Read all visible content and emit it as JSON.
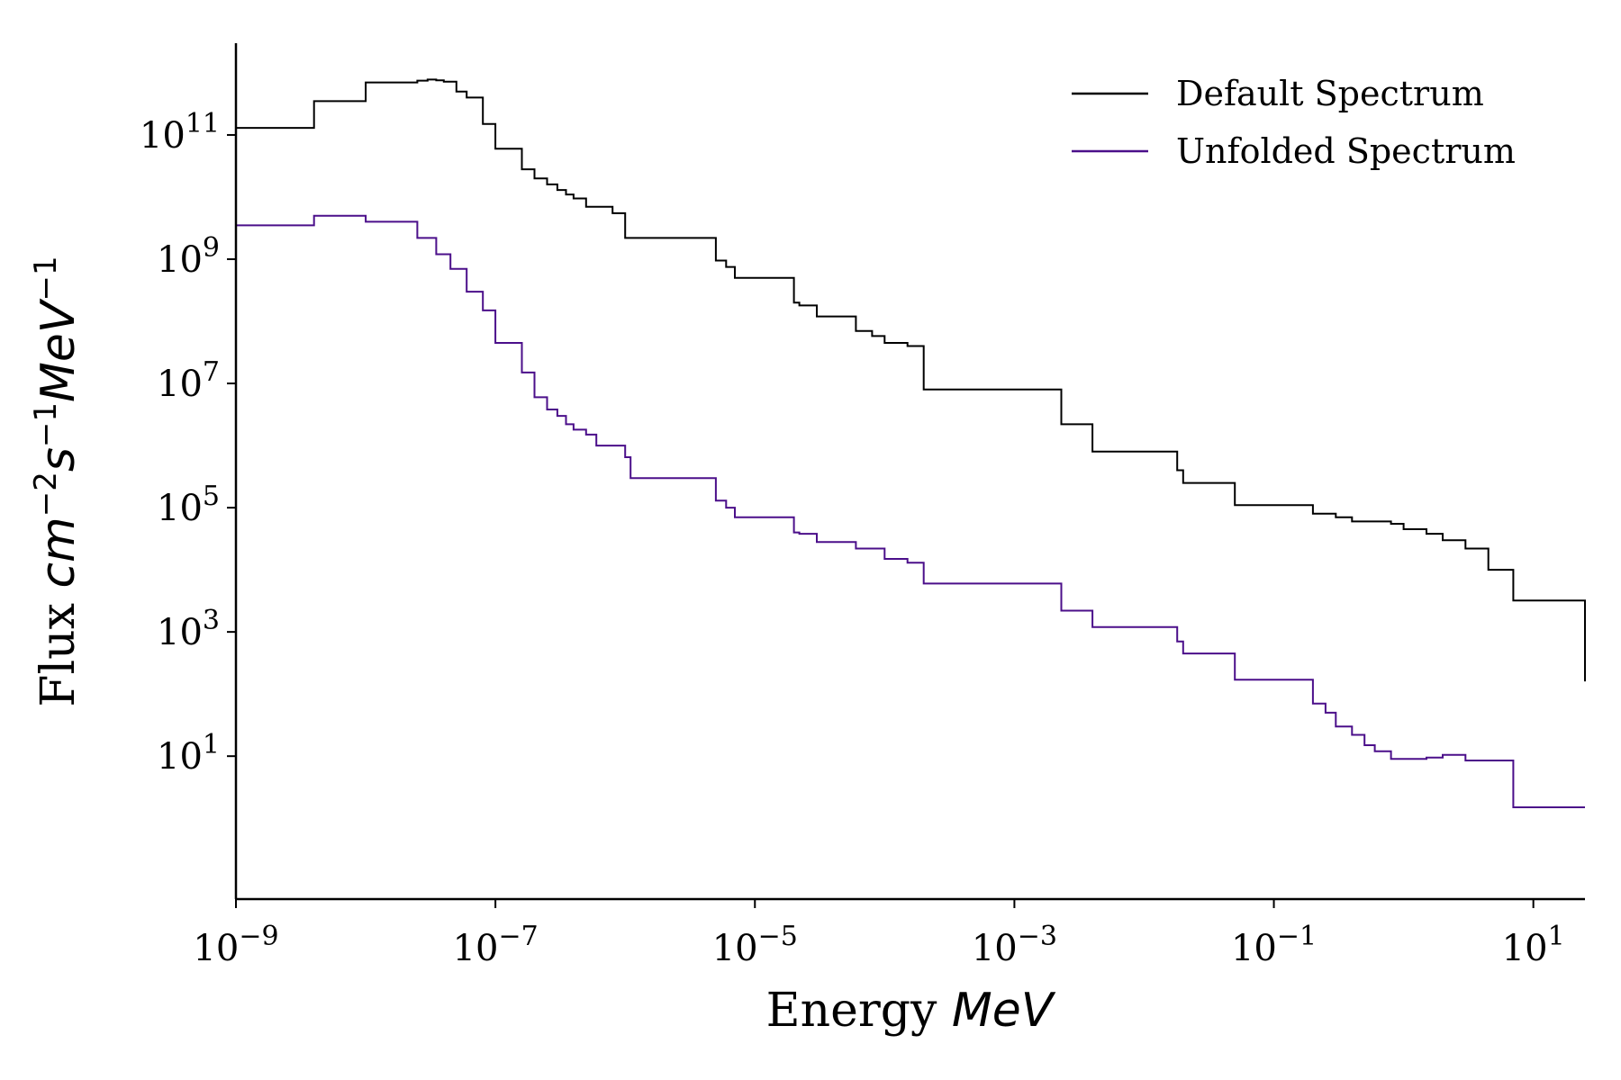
{
  "chart_data": {
    "type": "line",
    "xlabel": "Energy MeV",
    "ylabel": "Flux cm^-2 s^-1 MeV^-1",
    "x_scale": "log",
    "y_scale": "log",
    "xlim": [
      1e-09,
      25
    ],
    "ylim": [
      0.05,
      3000000000000.0
    ],
    "x_ticks": [
      {
        "value": 1e-09,
        "base": "10",
        "exp": "−9"
      },
      {
        "value": 1e-07,
        "base": "10",
        "exp": "−7"
      },
      {
        "value": 1e-05,
        "base": "10",
        "exp": "−5"
      },
      {
        "value": 0.001,
        "base": "10",
        "exp": "−3"
      },
      {
        "value": 0.1,
        "base": "10",
        "exp": "−1"
      },
      {
        "value": 10,
        "base": "10",
        "exp": "1"
      }
    ],
    "y_ticks": [
      {
        "value": 10,
        "base": "10",
        "exp": "1"
      },
      {
        "value": 1000,
        "base": "10",
        "exp": "3"
      },
      {
        "value": 100000,
        "base": "10",
        "exp": "5"
      },
      {
        "value": 10000000,
        "base": "10",
        "exp": "7"
      },
      {
        "value": 1000000000,
        "base": "10",
        "exp": "9"
      },
      {
        "value": 100000000000,
        "base": "10",
        "exp": "11"
      }
    ],
    "legend_position": "top-right",
    "grid": false,
    "series": [
      {
        "name": "Default Spectrum",
        "color": "#000000",
        "step": "post",
        "x": [
          1e-09,
          4e-09,
          1e-08,
          2.5e-08,
          3e-08,
          3.5e-08,
          4e-08,
          5e-08,
          6e-08,
          8e-08,
          1e-07,
          1.6e-07,
          2e-07,
          2.5e-07,
          3e-07,
          3.5e-07,
          4e-07,
          5e-07,
          6e-07,
          8e-07,
          1e-06,
          1.1e-06,
          5e-06,
          6e-06,
          7e-06,
          1e-05,
          2e-05,
          2.2e-05,
          3e-05,
          6e-05,
          8e-05,
          0.0001,
          0.00015,
          0.0002,
          0.0023,
          0.004,
          0.018,
          0.02,
          0.05,
          0.2,
          0.3,
          0.4,
          0.8,
          1,
          1.5,
          2,
          3,
          4.5,
          7,
          25
        ],
        "y": [
          130000000000.0,
          350000000000.0,
          700000000000.0,
          750000000000.0,
          780000000000.0,
          760000000000.0,
          720000000000.0,
          500000000000.0,
          400000000000.0,
          150000000000.0,
          60000000000.0,
          28000000000.0,
          20000000000.0,
          16000000000.0,
          13000000000.0,
          11000000000.0,
          9500000000.0,
          7000000000.0,
          7000000000.0,
          5500000000.0,
          2200000000.0,
          2200000000.0,
          950000000.0,
          750000000.0,
          500000000.0,
          500000000.0,
          200000000.0,
          180000000.0,
          120000000.0,
          70000000.0,
          58000000.0,
          45000000.0,
          40000000.0,
          8000000.0,
          2200000.0,
          800000.0,
          400000.0,
          250000.0,
          110000.0,
          80000.0,
          70000.0,
          60000.0,
          55000.0,
          45000.0,
          38000.0,
          30000.0,
          22000.0,
          10000.0,
          3200.0,
          160.0
        ]
      },
      {
        "name": "Unfolded Spectrum",
        "color": "#4b0f8a",
        "step": "post",
        "x": [
          1e-09,
          4e-09,
          1e-08,
          2.5e-08,
          3.5e-08,
          4.5e-08,
          6e-08,
          8e-08,
          1e-07,
          1.6e-07,
          2e-07,
          2.5e-07,
          3e-07,
          3.5e-07,
          4e-07,
          5e-07,
          6e-07,
          8e-07,
          1e-06,
          1.1e-06,
          5e-06,
          6e-06,
          7e-06,
          1e-05,
          2e-05,
          2.2e-05,
          3e-05,
          6e-05,
          0.0001,
          0.00015,
          0.0002,
          0.0023,
          0.004,
          0.018,
          0.02,
          0.05,
          0.2,
          0.25,
          0.3,
          0.4,
          0.5,
          0.6,
          0.8,
          1.5,
          2,
          3,
          7,
          25
        ],
        "y": [
          3500000000.0,
          5000000000.0,
          4000000000.0,
          2200000000.0,
          1200000000.0,
          700000000.0,
          300000000.0,
          150000000.0,
          45000000.0,
          15000000.0,
          6000000.0,
          3800000.0,
          3000000.0,
          2200000.0,
          1800000.0,
          1500000.0,
          1000000.0,
          1000000.0,
          650000.0,
          300000.0,
          130000.0,
          100000.0,
          70000.0,
          70000.0,
          40000.0,
          38000.0,
          28000.0,
          22000.0,
          15000.0,
          13000.0,
          6000.0,
          2200.0,
          1200.0,
          700.0,
          450.0,
          170.0,
          70,
          50,
          30,
          22,
          15,
          12,
          9,
          9.5,
          10.5,
          8.5,
          1.5,
          1.5
        ]
      }
    ]
  }
}
